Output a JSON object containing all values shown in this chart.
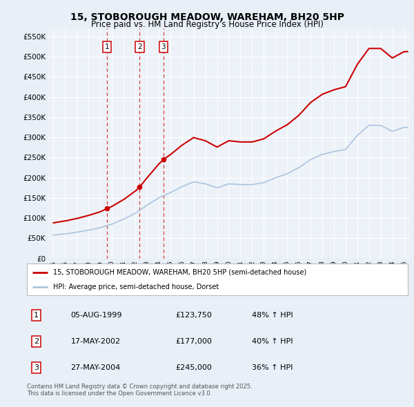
{
  "title": "15, STOBOROUGH MEADOW, WAREHAM, BH20 5HP",
  "subtitle": "Price paid vs. HM Land Registry's House Price Index (HPI)",
  "ylabel_ticks": [
    "£0",
    "£50K",
    "£100K",
    "£150K",
    "£200K",
    "£250K",
    "£300K",
    "£350K",
    "£400K",
    "£450K",
    "£500K",
    "£550K"
  ],
  "ytick_values": [
    0,
    50000,
    100000,
    150000,
    200000,
    250000,
    300000,
    350000,
    400000,
    450000,
    500000,
    550000
  ],
  "ylim": [
    0,
    570000
  ],
  "xlim_start": 1994.5,
  "xlim_end": 2025.5,
  "hpi_color": "#aac4e0",
  "price_color": "#cc0000",
  "sale_dates": [
    1999.59,
    2002.37,
    2004.41
  ],
  "sale_prices": [
    123750,
    177000,
    245000
  ],
  "sale_labels": [
    "1",
    "2",
    "3"
  ],
  "legend_entries": [
    "15, STOBOROUGH MEADOW, WAREHAM, BH20 5HP (semi-detached house)",
    "HPI: Average price, semi-detached house, Dorset"
  ],
  "table_rows": [
    [
      "1",
      "05-AUG-1999",
      "£123,750",
      "48% ↑ HPI"
    ],
    [
      "2",
      "17-MAY-2002",
      "£177,000",
      "40% ↑ HPI"
    ],
    [
      "3",
      "27-MAY-2004",
      "£245,000",
      "36% ↑ HPI"
    ]
  ],
  "footnote": "Contains HM Land Registry data © Crown copyright and database right 2025.\nThis data is licensed under the Open Government Licence v3.0.",
  "bg_color": "#e8eff7",
  "plot_bg_color": "#edf2f8",
  "years_hpi": [
    1995,
    1996,
    1997,
    1998,
    1999,
    2000,
    2001,
    2002,
    2003,
    2004,
    2005,
    2006,
    2007,
    2008,
    2009,
    2010,
    2011,
    2012,
    2013,
    2014,
    2015,
    2016,
    2017,
    2018,
    2019,
    2020,
    2021,
    2022,
    2023,
    2024,
    2025
  ],
  "hpi_values": [
    58000,
    61000,
    65000,
    70000,
    76000,
    85000,
    97000,
    112000,
    132000,
    150000,
    163000,
    178000,
    190000,
    185000,
    175000,
    185000,
    183000,
    183000,
    188000,
    200000,
    210000,
    225000,
    245000,
    258000,
    265000,
    270000,
    305000,
    330000,
    330000,
    315000,
    325000
  ]
}
